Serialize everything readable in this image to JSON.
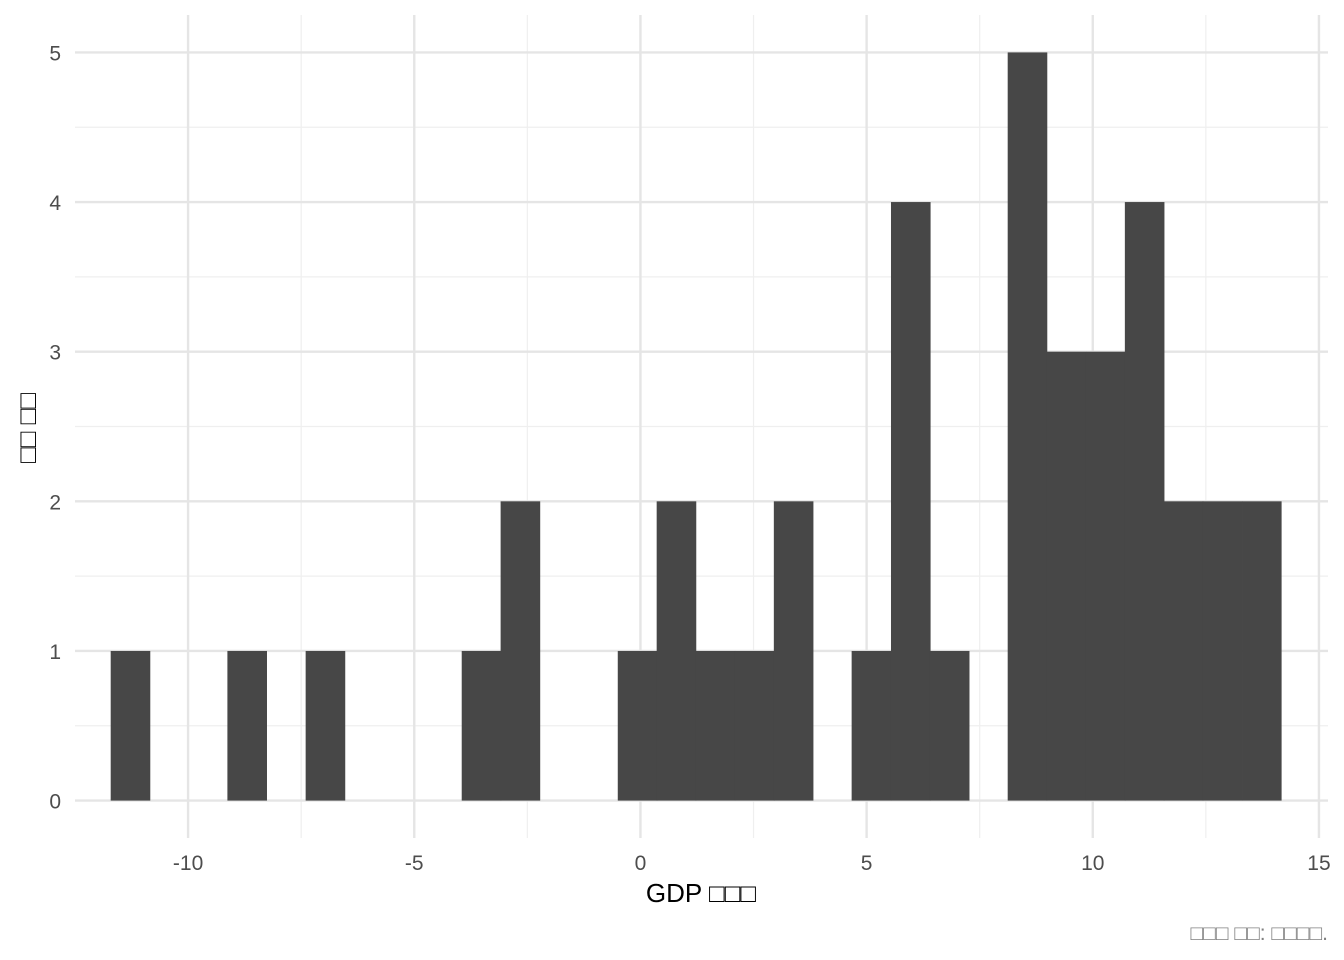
{
  "colors": {
    "bar": "#474747",
    "major_grid": "#e5e5e5",
    "minor_grid": "#efefef",
    "background": "#ffffff"
  },
  "chart_data": {
    "type": "bar",
    "title": "",
    "xlabel": "GDP □□□",
    "ylabel": "□□ □□",
    "caption": "□□□ □□: □□□□.",
    "xlim": [
      -12.5,
      15.2
    ],
    "ylim": [
      -0.25,
      5.25
    ],
    "x_ticks": [
      -10,
      -5,
      0,
      5,
      10,
      15
    ],
    "x_tick_labels": [
      "-10",
      "-5",
      "0",
      "5",
      "10",
      "15"
    ],
    "y_ticks": [
      0,
      1,
      2,
      3,
      4,
      5
    ],
    "y_tick_labels": [
      "0",
      "1",
      "2",
      "3",
      "4",
      "5"
    ],
    "bin_width": 0.862,
    "bins": [
      {
        "center": -11.28,
        "count": 1
      },
      {
        "center": -8.7,
        "count": 1
      },
      {
        "center": -6.97,
        "count": 1
      },
      {
        "center": -3.52,
        "count": 1
      },
      {
        "center": -2.66,
        "count": 2
      },
      {
        "center": -0.07,
        "count": 1
      },
      {
        "center": 0.79,
        "count": 2
      },
      {
        "center": 1.65,
        "count": 1
      },
      {
        "center": 2.52,
        "count": 1
      },
      {
        "center": 3.38,
        "count": 2
      },
      {
        "center": 5.1,
        "count": 1
      },
      {
        "center": 5.97,
        "count": 4
      },
      {
        "center": 6.83,
        "count": 1
      },
      {
        "center": 8.55,
        "count": 5
      },
      {
        "center": 9.41,
        "count": 3
      },
      {
        "center": 10.28,
        "count": 3
      },
      {
        "center": 11.14,
        "count": 4
      },
      {
        "center": 12.0,
        "count": 2
      },
      {
        "center": 12.86,
        "count": 2
      },
      {
        "center": 13.73,
        "count": 2
      }
    ],
    "grid": true,
    "legend": "none"
  }
}
